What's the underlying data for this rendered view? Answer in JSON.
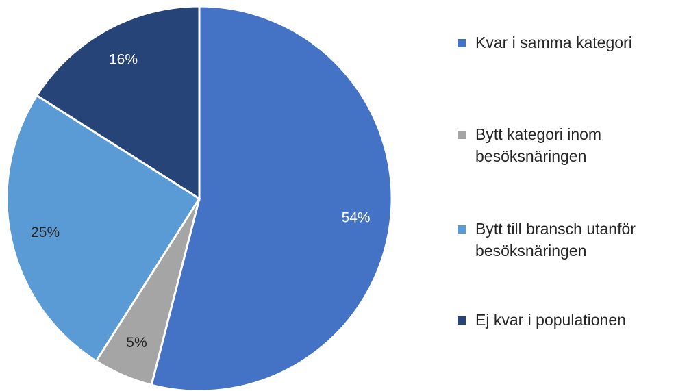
{
  "chart_data": {
    "type": "pie",
    "categories": [
      "Kvar i samma kategori",
      "Bytt kategori inom besöksnäringen",
      "Bytt till bransch utanför besöksnäringen",
      "Ej kvar i populationen"
    ],
    "values": [
      54,
      5,
      25,
      16
    ],
    "value_labels": [
      "54%",
      "5%",
      "25%",
      "16%"
    ],
    "colors": [
      "#4472c4",
      "#a5a5a5",
      "#5b9bd5",
      "#264478"
    ],
    "legend": "right"
  }
}
